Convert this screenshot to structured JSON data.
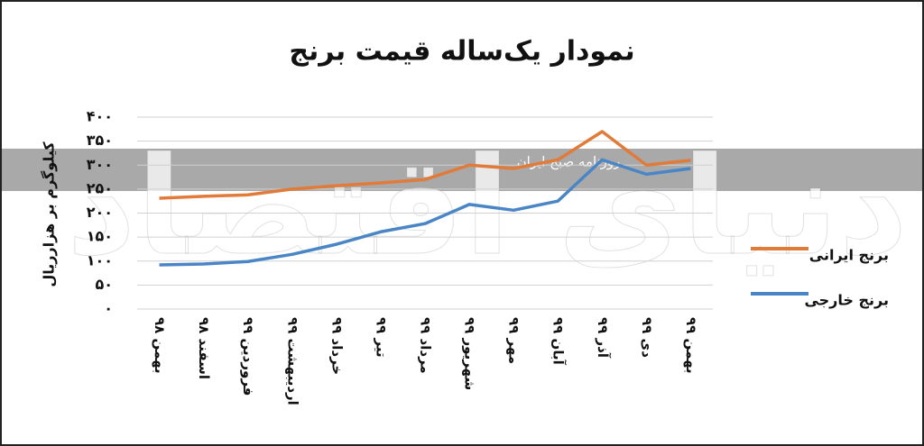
{
  "chart_data": {
    "type": "line",
    "title": "نمودار یک‌ساله قیمت برنج",
    "y_label": "کیلوگرم بر هزارریال",
    "watermark": "دنیای اقتصاد",
    "watermark_sub": "روزنامه صبح ایران",
    "categories": [
      "بهمن ۹۸",
      "اسفند ۹۸",
      "فروردین ۹۹",
      "اردیبهشت ۹۹",
      "خرداد ۹۹",
      "تیر ۹۹",
      "مرداد ۹۹",
      "شهریور ۹۹",
      "مهر ۹۹",
      "آبان ۹۹",
      "آذر ۹۹",
      "دی ۹۹",
      "بهمن ۹۹"
    ],
    "series": [
      {
        "name": "برنج ایرانی",
        "color": "#e07b39",
        "values": [
          231,
          235,
          238,
          250,
          257,
          263,
          270,
          300,
          293,
          311,
          370,
          300,
          310
        ]
      },
      {
        "name": "برنج خارجی",
        "color": "#4a86c5",
        "values": [
          92,
          94,
          99,
          114,
          135,
          161,
          178,
          218,
          206,
          225,
          311,
          281,
          293
        ]
      }
    ],
    "ylim": [
      0,
      400
    ],
    "yticks": [
      {
        "value": 0,
        "label": "۰"
      },
      {
        "value": 50,
        "label": "۵۰"
      },
      {
        "value": 100,
        "label": "۱۰۰"
      },
      {
        "value": 150,
        "label": "۱۵۰"
      },
      {
        "value": 200,
        "label": "۲۰۰"
      },
      {
        "value": 250,
        "label": "۲۵۰"
      },
      {
        "value": 300,
        "label": "۳۰۰"
      },
      {
        "value": 350,
        "label": "۳۵۰"
      },
      {
        "value": 400,
        "label": "۴۰۰"
      }
    ],
    "grid": true
  }
}
